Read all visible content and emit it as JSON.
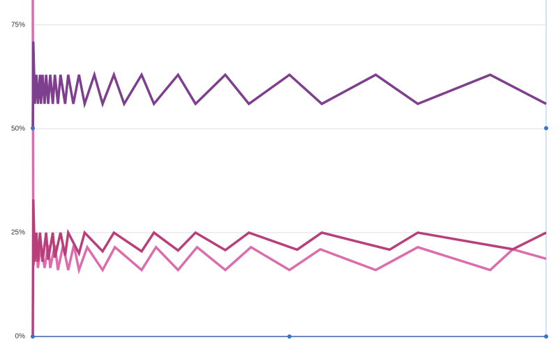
{
  "chart_data": {
    "type": "line",
    "xlim": [
      0,
      100
    ],
    "ylim": [
      0,
      81
    ],
    "yticks": [
      {
        "value": 0,
        "label": "0%"
      },
      {
        "value": 25,
        "label": "25%"
      },
      {
        "value": 50,
        "label": "50%"
      },
      {
        "value": 75,
        "label": "75%"
      }
    ],
    "grid": true,
    "series": [
      {
        "color": "#dc6dad",
        "x": [
          0,
          0.1,
          0.7,
          1.0,
          1.6,
          2.3,
          3.0,
          3.4,
          4.3,
          4.9,
          5.9,
          6.9,
          8.0,
          9.0,
          10.6,
          13.6,
          16,
          21.2,
          24,
          28.3,
          32,
          37.5,
          42.5,
          50,
          56,
          66.8,
          75,
          89.1,
          93.5,
          100
        ],
        "values": [
          81,
          17,
          22,
          16.5,
          22,
          16.5,
          22,
          16.5,
          22,
          16,
          22,
          16,
          22,
          16,
          21.5,
          16,
          21.5,
          16,
          21.5,
          16,
          21.5,
          16,
          21.5,
          16,
          21,
          16,
          21.5,
          16,
          21,
          18.7
        ]
      },
      {
        "color": "#b83f7a",
        "x": [
          0,
          0.1,
          0.4,
          0.7,
          1.0,
          1.4,
          1.9,
          2.6,
          3.0,
          3.9,
          4.3,
          5.4,
          6.3,
          6.9,
          9.0,
          10.1,
          13.6,
          15.8,
          21.2,
          23.6,
          28.3,
          31.7,
          37.5,
          42.1,
          51.5,
          56.3,
          69.5,
          75.0,
          93.5,
          100
        ],
        "values": [
          0,
          33,
          18,
          25,
          18,
          25,
          18,
          25,
          18.5,
          25,
          19,
          25,
          19.5,
          25,
          20,
          25,
          20.5,
          25,
          20.5,
          25,
          20.7,
          25,
          20.8,
          25,
          20.9,
          25,
          20.9,
          25,
          21,
          25
        ]
      },
      {
        "color": "#7d3f8e",
        "x": [
          0,
          0.1,
          0.4,
          0.7,
          1.0,
          1.4,
          1.6,
          1.9,
          2.3,
          2.6,
          3.0,
          3.4,
          3.9,
          4.3,
          4.9,
          5.4,
          6.3,
          6.9,
          7.9,
          9.0,
          10.1,
          12.0,
          13.6,
          15.8,
          17.8,
          21.2,
          23.6,
          28.3,
          31.7,
          37.5,
          42.1,
          50,
          56.3,
          66.8,
          75.0,
          89.1,
          100
        ],
        "values": [
          50,
          71,
          56,
          63,
          56,
          63,
          56,
          63,
          56,
          63,
          56,
          63,
          56,
          63,
          56,
          63,
          56,
          63,
          56,
          63,
          56,
          63,
          56,
          63,
          56,
          63,
          56,
          63,
          56,
          63,
          56,
          63,
          56,
          63,
          56,
          63,
          56
        ]
      }
    ]
  }
}
